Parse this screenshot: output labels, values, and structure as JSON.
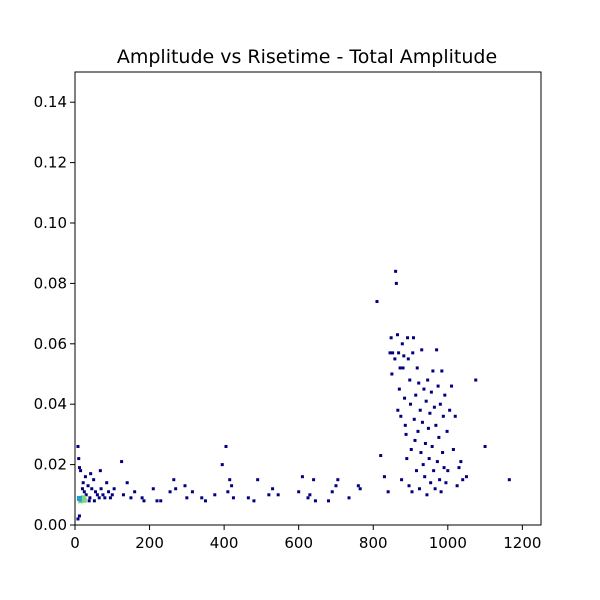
{
  "chart_data": {
    "type": "scatter",
    "title": "Amplitude vs Risetime - Total Amplitude",
    "xlabel": "",
    "ylabel": "",
    "xlim": [
      0,
      1250
    ],
    "ylim": [
      0,
      0.15
    ],
    "xticks": [
      0,
      200,
      400,
      600,
      800,
      1000,
      1200
    ],
    "xtick_labels": [
      "0",
      "200",
      "400",
      "600",
      "800",
      "1000",
      "1200"
    ],
    "yticks": [
      0.0,
      0.02,
      0.04,
      0.06,
      0.08,
      0.1,
      0.12,
      0.14
    ],
    "ytick_labels": [
      "0.00",
      "0.02",
      "0.04",
      "0.06",
      "0.08",
      "0.10",
      "0.12",
      "0.14"
    ],
    "grid": false,
    "colors": {
      "points": "#00007f",
      "dense_core": "#7fd67f",
      "dense_edge": "#1f9fd0"
    },
    "dense_points": [
      [
        15,
        0.008
      ],
      [
        18,
        0.0085
      ],
      [
        22,
        0.009
      ],
      [
        12,
        0.0088
      ],
      [
        25,
        0.0082
      ]
    ],
    "points": [
      [
        8,
        0.026
      ],
      [
        10,
        0.022
      ],
      [
        12,
        0.019
      ],
      [
        15,
        0.018
      ],
      [
        8,
        0.002
      ],
      [
        12,
        0.003
      ],
      [
        20,
        0.012
      ],
      [
        25,
        0.011
      ],
      [
        30,
        0.01
      ],
      [
        35,
        0.013
      ],
      [
        40,
        0.009
      ],
      [
        45,
        0.012
      ],
      [
        50,
        0.015
      ],
      [
        55,
        0.011
      ],
      [
        60,
        0.01
      ],
      [
        65,
        0.009
      ],
      [
        70,
        0.012
      ],
      [
        75,
        0.01
      ],
      [
        80,
        0.009
      ],
      [
        85,
        0.014
      ],
      [
        90,
        0.011
      ],
      [
        95,
        0.009
      ],
      [
        100,
        0.01
      ],
      [
        105,
        0.012
      ],
      [
        28,
        0.016
      ],
      [
        42,
        0.017
      ],
      [
        68,
        0.018
      ],
      [
        22,
        0.014
      ],
      [
        38,
        0.008
      ],
      [
        52,
        0.008
      ],
      [
        125,
        0.021
      ],
      [
        130,
        0.01
      ],
      [
        140,
        0.014
      ],
      [
        150,
        0.009
      ],
      [
        160,
        0.011
      ],
      [
        180,
        0.009
      ],
      [
        185,
        0.008
      ],
      [
        210,
        0.012
      ],
      [
        220,
        0.008
      ],
      [
        230,
        0.008
      ],
      [
        255,
        0.011
      ],
      [
        265,
        0.015
      ],
      [
        270,
        0.012
      ],
      [
        295,
        0.013
      ],
      [
        300,
        0.009
      ],
      [
        315,
        0.011
      ],
      [
        340,
        0.009
      ],
      [
        350,
        0.008
      ],
      [
        375,
        0.01
      ],
      [
        395,
        0.02
      ],
      [
        405,
        0.026
      ],
      [
        410,
        0.011
      ],
      [
        415,
        0.015
      ],
      [
        420,
        0.013
      ],
      [
        425,
        0.009
      ],
      [
        465,
        0.009
      ],
      [
        480,
        0.008
      ],
      [
        490,
        0.015
      ],
      [
        520,
        0.01
      ],
      [
        530,
        0.012
      ],
      [
        545,
        0.01
      ],
      [
        600,
        0.011
      ],
      [
        610,
        0.016
      ],
      [
        625,
        0.009
      ],
      [
        630,
        0.01
      ],
      [
        640,
        0.015
      ],
      [
        645,
        0.008
      ],
      [
        680,
        0.008
      ],
      [
        690,
        0.011
      ],
      [
        700,
        0.013
      ],
      [
        705,
        0.015
      ],
      [
        735,
        0.009
      ],
      [
        760,
        0.013
      ],
      [
        765,
        0.012
      ],
      [
        810,
        0.074
      ],
      [
        820,
        0.023
      ],
      [
        830,
        0.016
      ],
      [
        840,
        0.011
      ],
      [
        845,
        0.057
      ],
      [
        848,
        0.062
      ],
      [
        850,
        0.05
      ],
      [
        852,
        0.057
      ],
      [
        858,
        0.055
      ],
      [
        860,
        0.084
      ],
      [
        862,
        0.08
      ],
      [
        865,
        0.063
      ],
      [
        866,
        0.038
      ],
      [
        868,
        0.057
      ],
      [
        870,
        0.045
      ],
      [
        872,
        0.052
      ],
      [
        874,
        0.036
      ],
      [
        876,
        0.015
      ],
      [
        878,
        0.06
      ],
      [
        880,
        0.052
      ],
      [
        882,
        0.056
      ],
      [
        884,
        0.042
      ],
      [
        886,
        0.033
      ],
      [
        888,
        0.03
      ],
      [
        890,
        0.022
      ],
      [
        892,
        0.062
      ],
      [
        894,
        0.055
      ],
      [
        896,
        0.013
      ],
      [
        898,
        0.048
      ],
      [
        900,
        0.04
      ],
      [
        902,
        0.025
      ],
      [
        904,
        0.011
      ],
      [
        906,
        0.057
      ],
      [
        908,
        0.062
      ],
      [
        910,
        0.035
      ],
      [
        912,
        0.028
      ],
      [
        914,
        0.043
      ],
      [
        916,
        0.018
      ],
      [
        918,
        0.052
      ],
      [
        920,
        0.031
      ],
      [
        922,
        0.047
      ],
      [
        924,
        0.012
      ],
      [
        926,
        0.038
      ],
      [
        928,
        0.024
      ],
      [
        930,
        0.058
      ],
      [
        932,
        0.034
      ],
      [
        934,
        0.02
      ],
      [
        936,
        0.045
      ],
      [
        938,
        0.016
      ],
      [
        940,
        0.027
      ],
      [
        942,
        0.041
      ],
      [
        944,
        0.01
      ],
      [
        946,
        0.048
      ],
      [
        948,
        0.032
      ],
      [
        950,
        0.022
      ],
      [
        952,
        0.037
      ],
      [
        954,
        0.014
      ],
      [
        956,
        0.044
      ],
      [
        958,
        0.026
      ],
      [
        960,
        0.051
      ],
      [
        962,
        0.018
      ],
      [
        964,
        0.039
      ],
      [
        966,
        0.012
      ],
      [
        968,
        0.033
      ],
      [
        970,
        0.058
      ],
      [
        972,
        0.021
      ],
      [
        974,
        0.046
      ],
      [
        976,
        0.029
      ],
      [
        978,
        0.015
      ],
      [
        980,
        0.04
      ],
      [
        982,
        0.011
      ],
      [
        984,
        0.051
      ],
      [
        986,
        0.024
      ],
      [
        988,
        0.036
      ],
      [
        990,
        0.019
      ],
      [
        992,
        0.043
      ],
      [
        995,
        0.014
      ],
      [
        998,
        0.031
      ],
      [
        1000,
        0.018
      ],
      [
        1005,
        0.038
      ],
      [
        1010,
        0.046
      ],
      [
        1015,
        0.025
      ],
      [
        1020,
        0.036
      ],
      [
        1025,
        0.013
      ],
      [
        1030,
        0.019
      ],
      [
        1035,
        0.021
      ],
      [
        1040,
        0.015
      ],
      [
        1050,
        0.016
      ],
      [
        1075,
        0.048
      ],
      [
        1100,
        0.026
      ],
      [
        1165,
        0.015
      ]
    ]
  }
}
